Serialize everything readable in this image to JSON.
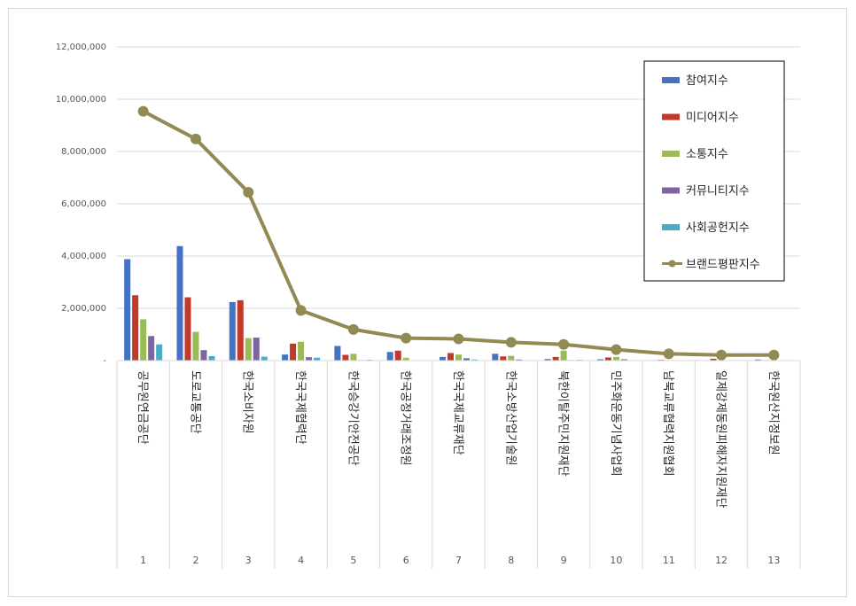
{
  "chart_data": {
    "type": "bar",
    "numbers": [
      "1",
      "2",
      "3",
      "4",
      "5",
      "6",
      "7",
      "8",
      "9",
      "10",
      "11",
      "12",
      "13"
    ],
    "categories": [
      "공무원연금공단",
      "도로교통공단",
      "한국소비자원",
      "한국국제협력단",
      "한국승강기안전공단",
      "한국공정거래조정원",
      "한국국제교류재단",
      "한국소방산업기술원",
      "북한이탈주민지원재단",
      "민주화운동기념사업회",
      "남북교류협력지원협회",
      "일제강제동원피해자지원재단",
      "한국원산지정보원"
    ],
    "series": [
      {
        "name": "참여지수",
        "color": "#4472c4",
        "values": [
          3880000,
          4380000,
          2240000,
          230000,
          560000,
          330000,
          140000,
          260000,
          60000,
          50000,
          20000,
          10000,
          40000
        ]
      },
      {
        "name": "미디어지수",
        "color": "#c0392b",
        "values": [
          2500000,
          2420000,
          2310000,
          650000,
          220000,
          380000,
          290000,
          160000,
          140000,
          120000,
          30000,
          70000,
          20000
        ]
      },
      {
        "name": "소통지수",
        "color": "#9bbb59",
        "values": [
          1580000,
          1100000,
          860000,
          720000,
          260000,
          110000,
          230000,
          180000,
          380000,
          140000,
          10000,
          10000,
          10000
        ]
      },
      {
        "name": "커뮤니티지수",
        "color": "#8064a2",
        "values": [
          940000,
          400000,
          880000,
          130000,
          20000,
          10000,
          90000,
          40000,
          20000,
          50000,
          10000,
          10000,
          10000
        ]
      },
      {
        "name": "사회공헌지수",
        "color": "#4bacc6",
        "values": [
          620000,
          170000,
          150000,
          110000,
          30000,
          10000,
          40000,
          10000,
          30000,
          20000,
          10000,
          10000,
          10000
        ]
      }
    ],
    "line_series": {
      "name": "브랜드평판지수",
      "color": "#938953",
      "values": [
        9540000,
        8480000,
        6440000,
        1920000,
        1190000,
        860000,
        830000,
        700000,
        620000,
        420000,
        260000,
        210000,
        210000
      ]
    },
    "yticks": [
      "-",
      "2,000,000",
      "4,000,000",
      "6,000,000",
      "8,000,000",
      "10,000,000",
      "12,000,000"
    ],
    "ylim": [
      0,
      12000000
    ],
    "grid": true,
    "legend_position": "top-right"
  }
}
